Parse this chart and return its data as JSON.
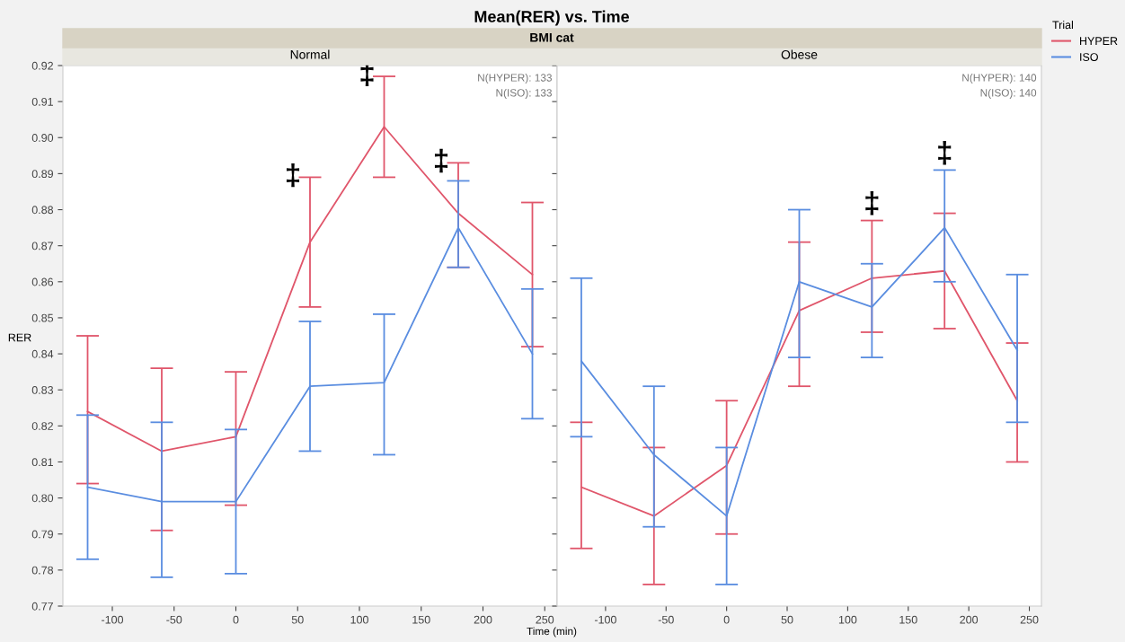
{
  "chart_data": [
    {
      "type": "line",
      "title": "Mean(RER) vs. Time",
      "subtitle": "Normal",
      "xlabel": "Time (min)",
      "ylabel": "RER",
      "legend_title": "Trial",
      "legend": "right",
      "grid": false,
      "marker": "none",
      "line_style": "solid",
      "xlim": [
        -140,
        260
      ],
      "xticks": [
        -100,
        -50,
        0,
        50,
        100,
        150,
        200,
        250
      ],
      "ylim": [
        0.77,
        0.92
      ],
      "yticks": [
        0.77,
        0.78,
        0.79,
        {
          "value": 0.8,
          "label": "0.80"
        },
        0.81,
        0.82,
        0.83,
        0.84,
        0.85,
        0.86,
        0.87,
        0.88,
        0.89,
        {
          "value": 0.9,
          "label": "0.90"
        },
        0.91,
        0.92
      ],
      "x": [
        -120,
        -60,
        0,
        60,
        120,
        180,
        240
      ],
      "series": [
        {
          "name": "HYPER",
          "color": "#e0566b",
          "values": [
            0.824,
            0.813,
            0.817,
            0.871,
            0.903,
            0.879,
            0.862
          ],
          "errors": [
            [
              0.804,
              0.845
            ],
            [
              0.791,
              0.836
            ],
            [
              0.798,
              0.835
            ],
            [
              0.853,
              0.889
            ],
            [
              0.889,
              0.917
            ],
            [
              0.864,
              0.893
            ],
            [
              0.842,
              0.882
            ]
          ]
        },
        {
          "name": "ISO",
          "color": "#5a8de0",
          "values": [
            0.803,
            0.799,
            0.799,
            0.831,
            0.832,
            0.875,
            0.84
          ],
          "errors": [
            [
              0.783,
              0.823
            ],
            [
              0.778,
              0.821
            ],
            [
              0.779,
              0.819
            ],
            [
              0.813,
              0.849
            ],
            [
              0.812,
              0.851
            ],
            [
              0.864,
              0.888
            ],
            [
              0.822,
              0.858
            ]
          ]
        }
      ],
      "annotations": [
        "N(HYPER): 133",
        "N(ISO): 133",
        {
          "text": "‡",
          "x": 60,
          "y": 0.889
        },
        {
          "text": "‡",
          "x": 120,
          "y": 0.917
        },
        {
          "text": "‡",
          "x": 180,
          "y": 0.893
        }
      ]
    },
    {
      "type": "line",
      "title": "BMI cat",
      "subtitle": "Obese",
      "tick_labels": "x",
      "grid": false,
      "marker": "none",
      "line_style": "solid",
      "xlim": [
        -140,
        260
      ],
      "xticks": [
        -100,
        -50,
        0,
        50,
        100,
        150,
        200,
        250
      ],
      "ylim": [
        0.77,
        0.92
      ],
      "yticks": [
        0.77,
        0.78,
        0.79,
        0.8,
        0.81,
        0.82,
        0.83,
        0.84,
        0.85,
        0.86,
        0.87,
        0.88,
        0.89,
        0.9,
        0.91,
        0.92
      ],
      "x": [
        -120,
        -60,
        0,
        60,
        120,
        180,
        240
      ],
      "series": [
        {
          "color": "#e0566b",
          "values": [
            0.803,
            0.795,
            0.809,
            0.852,
            0.861,
            0.863,
            0.827
          ],
          "errors": [
            [
              0.786,
              0.821
            ],
            [
              0.776,
              0.814
            ],
            [
              0.79,
              0.827
            ],
            [
              0.831,
              0.871
            ],
            [
              0.846,
              0.877
            ],
            [
              0.847,
              0.879
            ],
            [
              0.81,
              0.843
            ]
          ]
        },
        {
          "color": "#5a8de0",
          "values": [
            0.838,
            0.812,
            0.795,
            0.86,
            0.853,
            0.875,
            0.841
          ],
          "errors": [
            [
              0.817,
              0.861
            ],
            [
              0.792,
              0.831
            ],
            [
              0.776,
              0.814
            ],
            [
              0.839,
              0.88
            ],
            [
              0.839,
              0.865
            ],
            [
              0.86,
              0.891
            ],
            [
              0.821,
              0.862
            ]
          ]
        }
      ],
      "annotations": [
        "N(HYPER): 140",
        "N(ISO): 140",
        {
          "text": "‡",
          "x": 120,
          "y": 0.877
        },
        {
          "text": "‡",
          "x": 180,
          "y": 0.891
        }
      ]
    }
  ]
}
